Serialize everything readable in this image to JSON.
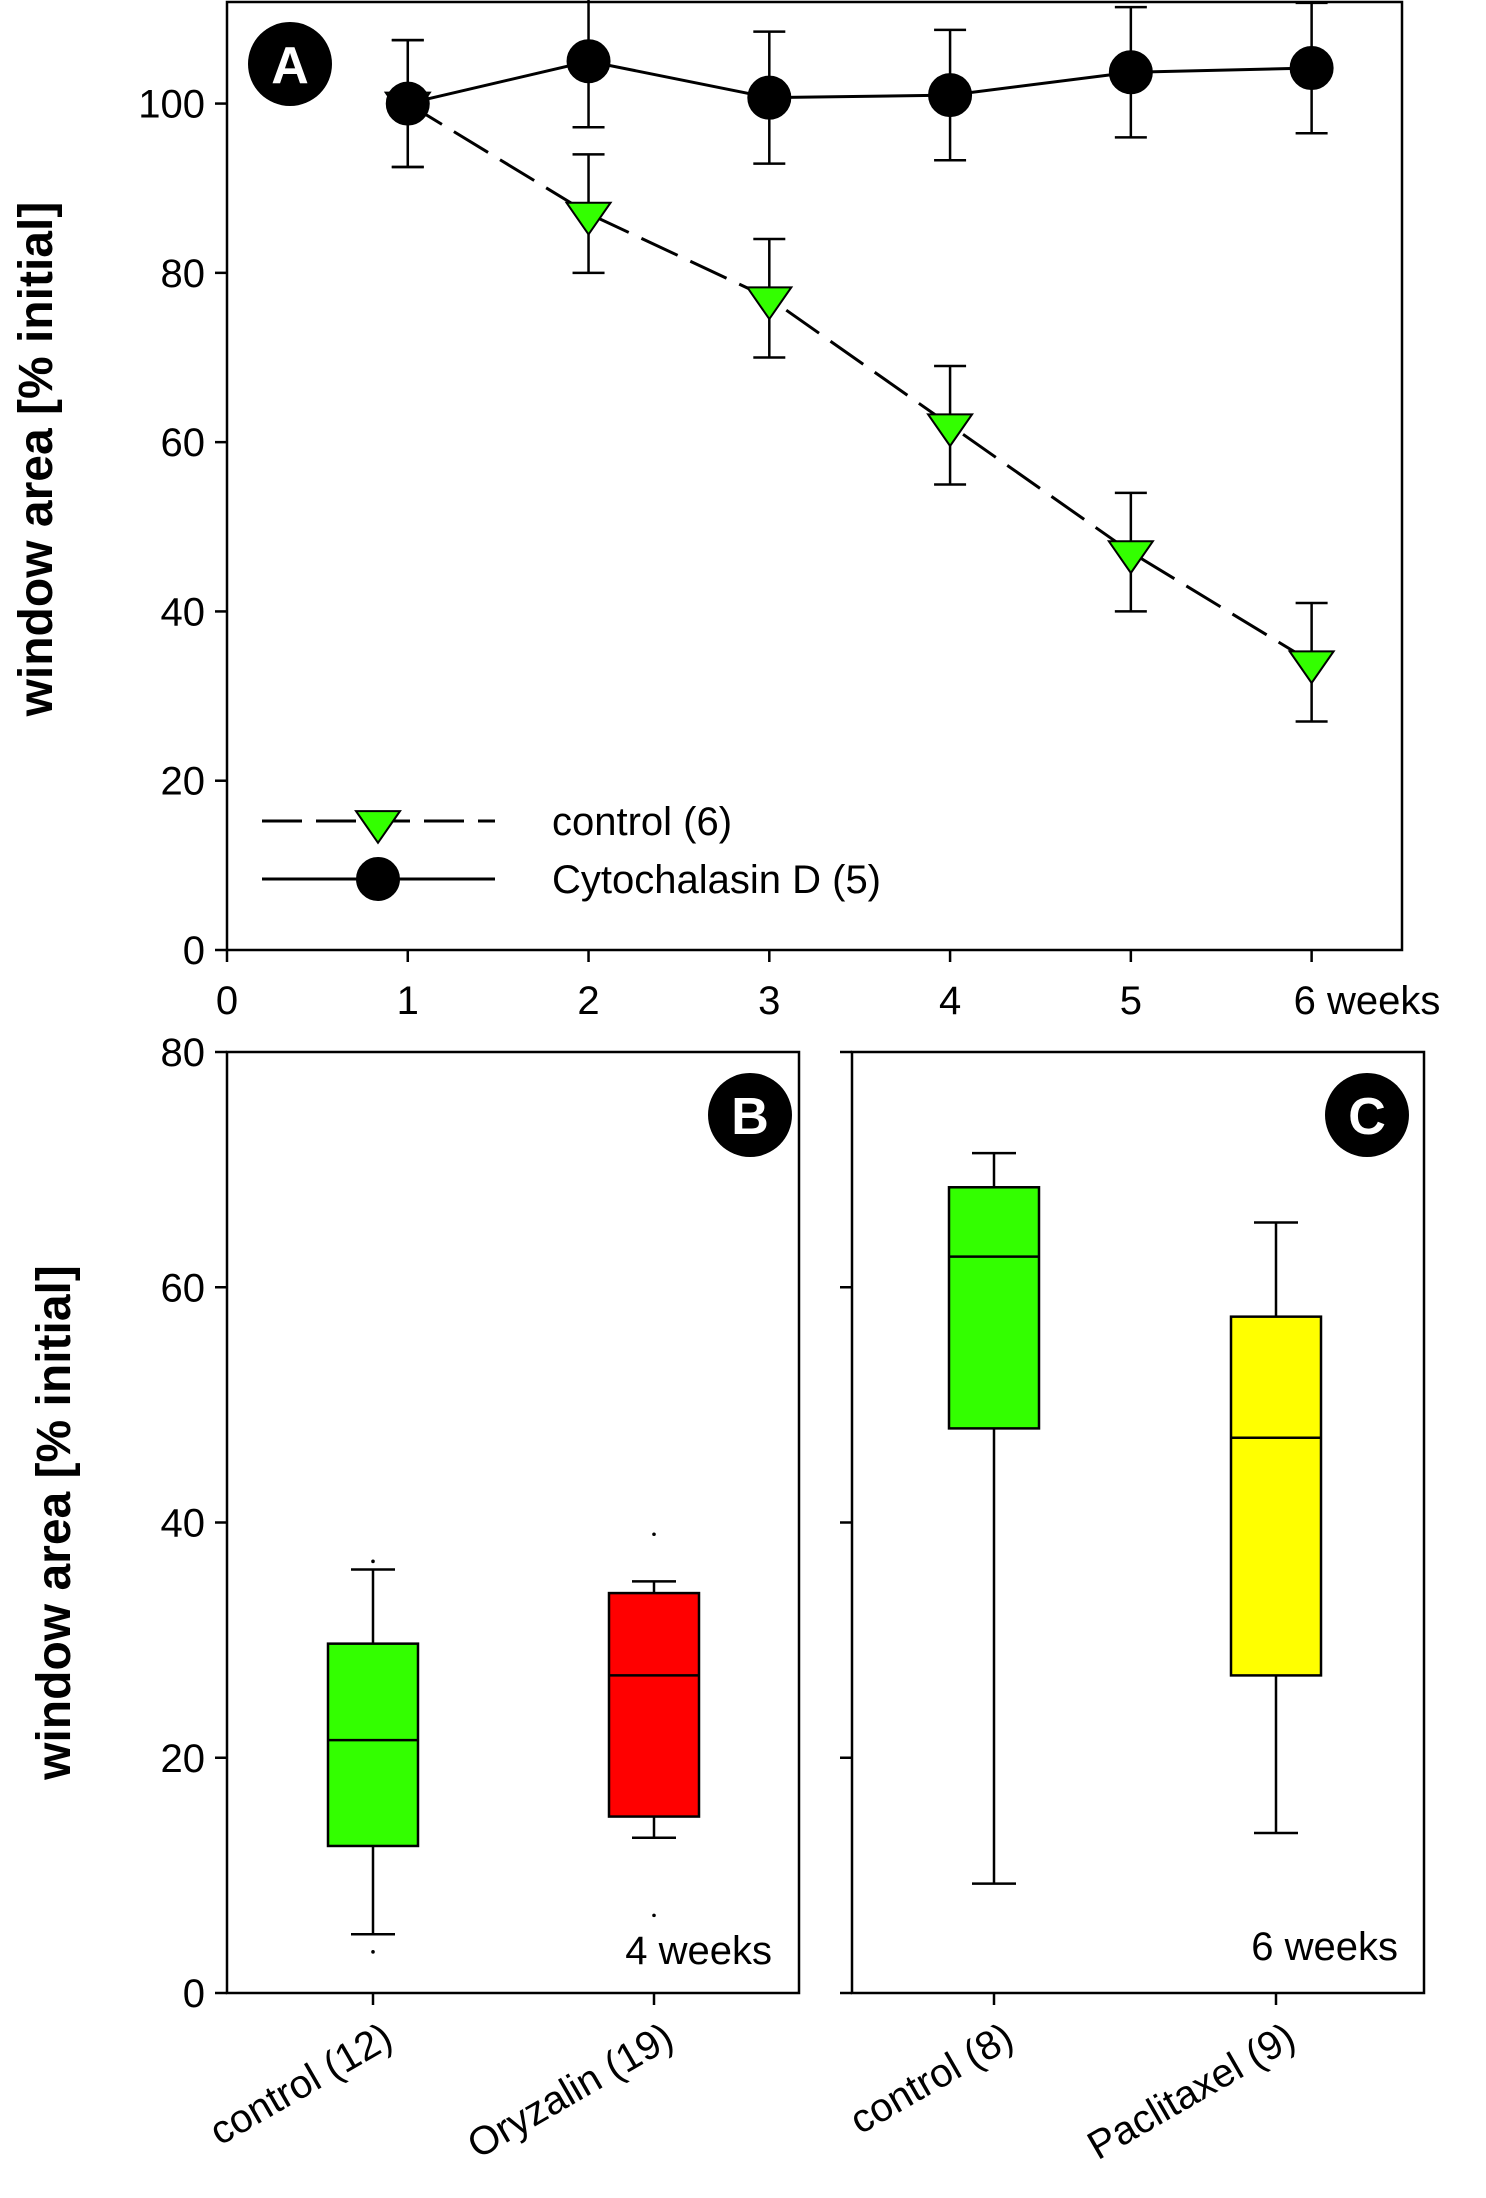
{
  "chart_data": [
    {
      "id": "A",
      "type": "line",
      "badge": "A",
      "ylabel": "window area [% initial]",
      "xlabel": "weeks",
      "x": [
        1,
        2,
        3,
        4,
        5,
        6
      ],
      "xlim": [
        0,
        6.5
      ],
      "ylim": [
        0,
        112
      ],
      "x_tick_labels": [
        "0",
        "1",
        "2",
        "3",
        "4",
        "5",
        "6 weeks"
      ],
      "y_ticks": [
        0,
        20,
        40,
        60,
        80,
        100
      ],
      "series": [
        {
          "name": "control (6)",
          "values": [
            100,
            87,
            77,
            62,
            47,
            34
          ],
          "errors": [
            7.5,
            7,
            7,
            7,
            7,
            7
          ],
          "color": "#33ff00",
          "marker": "triangle-down",
          "line": "dashed"
        },
        {
          "name": "Cytochalasin D (5)",
          "values": [
            100,
            105,
            100.7,
            101,
            103.7,
            104.2
          ],
          "errors": [
            7.5,
            7.8,
            7.8,
            7.7,
            7.7,
            7.7
          ],
          "color": "#000000",
          "marker": "circle",
          "line": "solid"
        }
      ],
      "legend_position": "bottom-left"
    },
    {
      "id": "B",
      "type": "box",
      "badge": "B",
      "ylabel": "window area [% initial]",
      "annotation": "4 weeks",
      "ylim": [
        0,
        80
      ],
      "y_ticks": [
        0,
        20,
        40,
        60,
        80
      ],
      "categories": [
        "control (12)",
        "Oryzalin (19)"
      ],
      "boxes": [
        {
          "label": "control (12)",
          "whisker_low": 5,
          "q1": 12.5,
          "median": 21.5,
          "q3": 29.7,
          "whisker_high": 36,
          "outliers": [
            3.5,
            36.7
          ],
          "color": "#33ff00"
        },
        {
          "label": "Oryzalin (19)",
          "whisker_low": 13.2,
          "q1": 15,
          "median": 27,
          "q3": 34,
          "whisker_high": 35,
          "outliers": [
            6.6,
            39
          ],
          "color": "#ff0000"
        }
      ]
    },
    {
      "id": "C",
      "type": "box",
      "badge": "C",
      "annotation": "6 weeks",
      "ylim": [
        0,
        80
      ],
      "y_ticks": [
        0,
        20,
        40,
        60,
        80
      ],
      "categories": [
        "control (8)",
        "Paclitaxel (9)"
      ],
      "boxes": [
        {
          "label": "control (8)",
          "whisker_low": 9.3,
          "q1": 48,
          "median": 62.6,
          "q3": 68.5,
          "whisker_high": 71.4,
          "outliers": [],
          "color": "#33ff00"
        },
        {
          "label": "Paclitaxel (9)",
          "whisker_low": 13.6,
          "q1": 27,
          "median": 47.2,
          "q3": 57.5,
          "whisker_high": 65.5,
          "outliers": [],
          "color": "#ffff00"
        }
      ]
    }
  ]
}
